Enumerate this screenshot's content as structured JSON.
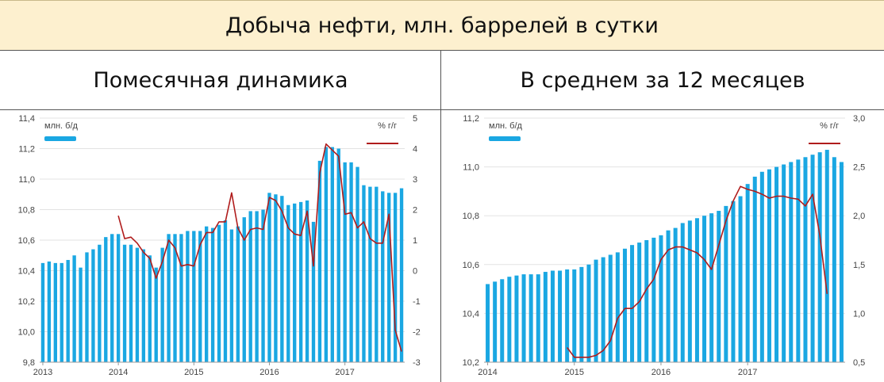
{
  "page": {
    "title": "Добыча нефти, млн. баррелей в сутки"
  },
  "panels": {
    "left": {
      "title": "Помесячная динамика"
    },
    "right": {
      "title": "В среднем за 12 месяцев"
    }
  },
  "colors": {
    "bars": "#1aa7e2",
    "line": "#b01c1c",
    "grid": "#e3e3e3",
    "axis_text": "#444444"
  },
  "chart_data": [
    {
      "type": "bar",
      "legend_bar_label": "млн. б/д",
      "legend_line_label": "% г/г",
      "legend_placement": "top",
      "x_tick_labels": [
        "2013",
        "2014",
        "2015",
        "2016",
        "2017"
      ],
      "x_tick_index": [
        0,
        12,
        24,
        36,
        48
      ],
      "ylim": [
        9.8,
        11.4
      ],
      "yticks": [
        "9,8",
        "10,0",
        "10,2",
        "10,4",
        "10,6",
        "10,8",
        "11,0",
        "11,2",
        "11,4"
      ],
      "y2lim": [
        -3,
        5
      ],
      "y2ticks": [
        "-3",
        "-2",
        "-1",
        "0",
        "1",
        "2",
        "3",
        "4",
        "5"
      ],
      "grid": true,
      "series": [
        {
          "name": "млн. б/д",
          "kind": "bar",
          "values": [
            10.45,
            10.46,
            10.45,
            10.45,
            10.47,
            10.5,
            10.42,
            10.52,
            10.54,
            10.57,
            10.62,
            10.64,
            10.64,
            10.57,
            10.57,
            10.55,
            10.54,
            10.5,
            10.42,
            10.55,
            10.64,
            10.64,
            10.64,
            10.66,
            10.66,
            10.66,
            10.69,
            10.68,
            10.7,
            10.73,
            10.67,
            10.69,
            10.75,
            10.79,
            10.79,
            10.8,
            10.91,
            10.9,
            10.89,
            10.83,
            10.84,
            10.85,
            10.86,
            10.72,
            11.12,
            11.21,
            11.21,
            11.2,
            11.11,
            11.11,
            11.08,
            10.96,
            10.95,
            10.95,
            10.92,
            10.91,
            10.91,
            10.94
          ]
        },
        {
          "name": "% г/г",
          "kind": "line",
          "axis": "right",
          "x_start_index": 12,
          "values": [
            1.8,
            1.05,
            1.1,
            0.9,
            0.6,
            0.4,
            -0.25,
            0.3,
            1.0,
            0.75,
            0.15,
            0.2,
            0.15,
            0.85,
            1.25,
            1.25,
            1.6,
            1.6,
            2.55,
            1.4,
            1.0,
            1.35,
            1.4,
            1.35,
            2.4,
            2.3,
            1.95,
            1.4,
            1.2,
            1.15,
            1.95,
            0.15,
            3.2,
            4.15,
            3.95,
            3.75,
            1.85,
            1.9,
            1.4,
            1.6,
            1.05,
            0.9,
            0.9,
            1.85,
            -1.95,
            -2.65
          ]
        }
      ]
    },
    {
      "type": "bar",
      "legend_bar_label": "млн. б/д",
      "legend_line_label": "% г/г",
      "legend_placement": "top",
      "x_tick_labels": [
        "2014",
        "2015",
        "2016",
        "2017"
      ],
      "x_tick_index": [
        0,
        12,
        24,
        36
      ],
      "ylim": [
        10.2,
        11.2
      ],
      "yticks": [
        "10,2",
        "10,4",
        "10,6",
        "10,8",
        "11,0",
        "11,2"
      ],
      "y2lim": [
        0.5,
        3.0
      ],
      "y2ticks": [
        "0,5",
        "1,0",
        "1,5",
        "2,0",
        "2,5",
        "3,0"
      ],
      "grid": true,
      "series": [
        {
          "name": "млн. б/д",
          "kind": "bar",
          "values": [
            10.52,
            10.53,
            10.54,
            10.55,
            10.555,
            10.56,
            10.56,
            10.56,
            10.57,
            10.575,
            10.575,
            10.58,
            10.58,
            10.59,
            10.6,
            10.62,
            10.63,
            10.64,
            10.65,
            10.665,
            10.68,
            10.69,
            10.7,
            10.71,
            10.72,
            10.74,
            10.75,
            10.77,
            10.78,
            10.79,
            10.8,
            10.81,
            10.82,
            10.84,
            10.86,
            10.88,
            10.93,
            10.96,
            10.98,
            10.99,
            11.0,
            11.01,
            11.02,
            11.03,
            11.04,
            11.05,
            11.06,
            11.07,
            11.04,
            11.02
          ]
        },
        {
          "name": "% г/г",
          "kind": "line",
          "axis": "right",
          "x_start_index": 11,
          "values": [
            0.65,
            0.55,
            0.55,
            0.55,
            0.57,
            0.62,
            0.72,
            0.95,
            1.05,
            1.05,
            1.12,
            1.25,
            1.35,
            1.55,
            1.65,
            1.68,
            1.68,
            1.65,
            1.62,
            1.55,
            1.45,
            1.7,
            1.95,
            2.15,
            2.3,
            2.27,
            2.25,
            2.22,
            2.18,
            2.2,
            2.2,
            2.18,
            2.17,
            2.1,
            2.22,
            1.8,
            1.2
          ]
        }
      ]
    }
  ]
}
